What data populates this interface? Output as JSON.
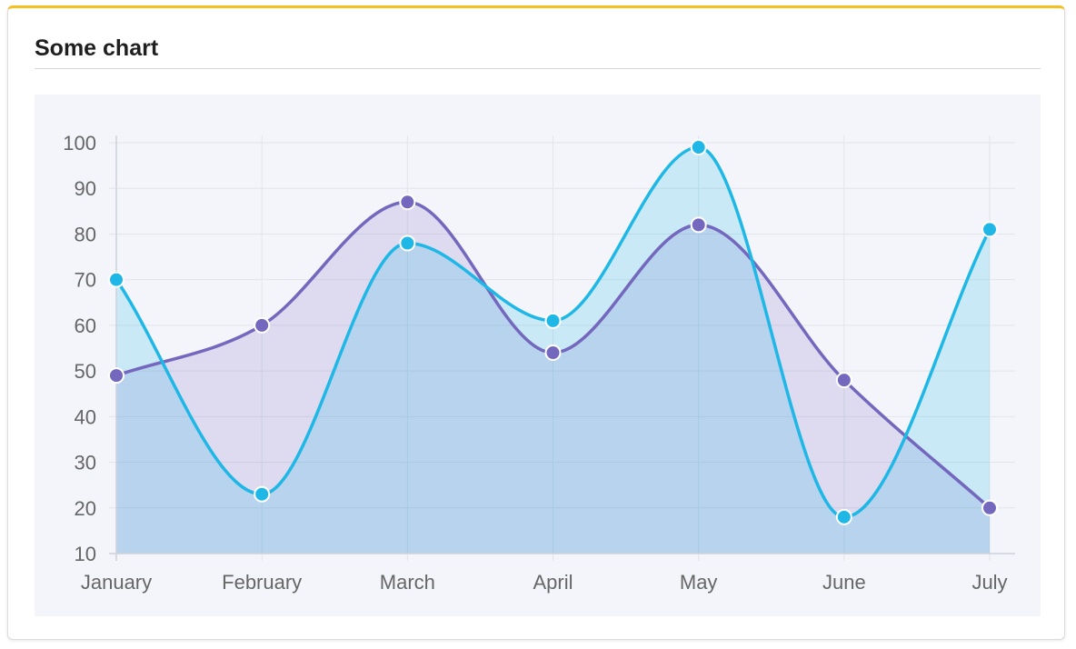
{
  "card": {
    "title": "Some chart"
  },
  "chart_data": {
    "type": "area",
    "categories": [
      "January",
      "February",
      "March",
      "April",
      "May",
      "June",
      "July"
    ],
    "series": [
      {
        "values": [
          49,
          60,
          87,
          54,
          82,
          48,
          20
        ],
        "color": "#7467be",
        "fill": "rgba(120,100,190,0.18)"
      },
      {
        "values": [
          70,
          23,
          78,
          61,
          99,
          18,
          81
        ],
        "color": "#1fb7e6",
        "fill": "rgba(31,183,230,0.20)"
      }
    ],
    "ylim": [
      10,
      100
    ],
    "yticks": [
      10,
      20,
      30,
      40,
      50,
      60,
      70,
      80,
      90,
      100
    ],
    "grid": true,
    "smooth": true
  }
}
